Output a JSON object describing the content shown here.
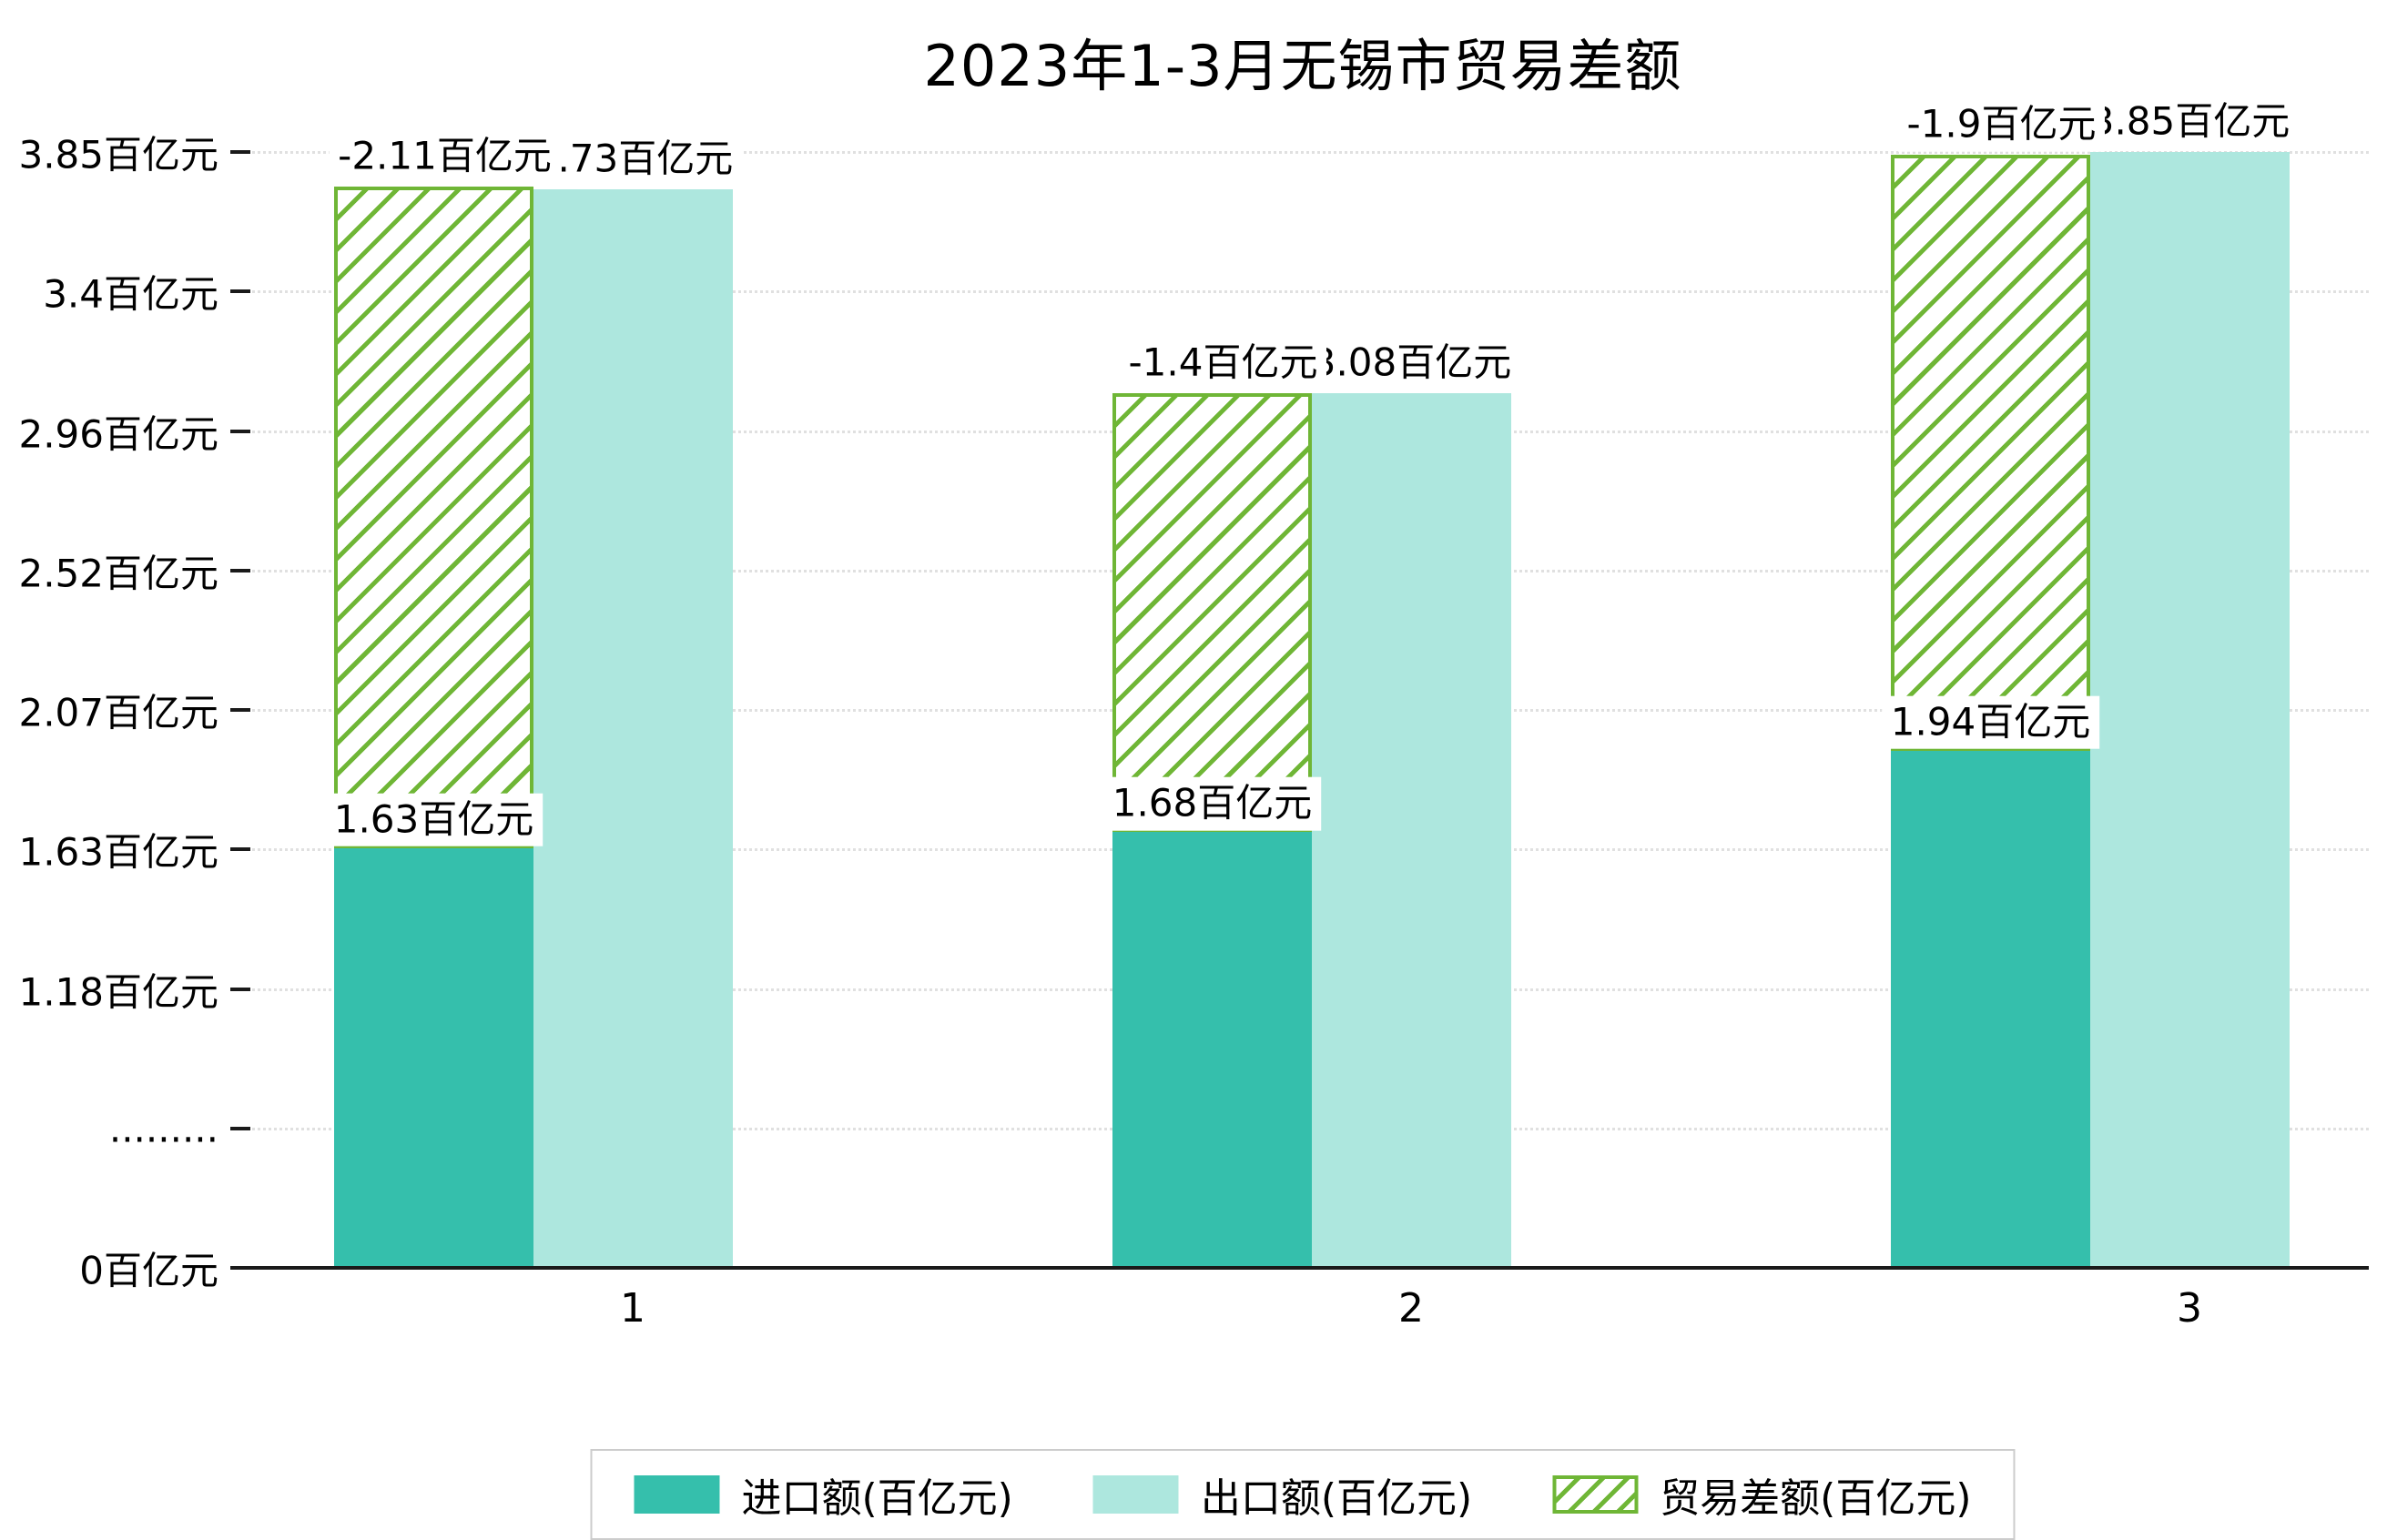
{
  "chart_data": {
    "type": "bar",
    "title": "2023年1-3月无锡市贸易差额",
    "categories": [
      "1",
      "2",
      "3"
    ],
    "unit": "百亿元",
    "series": [
      {
        "name": "进口额(百亿元)",
        "values": [
          1.63,
          1.68,
          1.94
        ],
        "value_labels": [
          "1.63百亿元",
          "1.68百亿元",
          "1.94百亿元"
        ],
        "color": "#35bfac",
        "style": "solid"
      },
      {
        "name": "出口额(百亿元)",
        "values": [
          3.73,
          3.08,
          3.85
        ],
        "value_labels": [
          "3.73百亿元",
          "3.08百亿元",
          "3.85百亿元"
        ],
        "color": "#ade7de",
        "style": "solid"
      },
      {
        "name": "贸易差额(百亿元)",
        "values": [
          -2.11,
          -1.4,
          -1.9
        ],
        "value_labels": [
          "-2.11百亿元",
          "-1.4百亿元",
          "-1.9百亿元"
        ],
        "color": "#6fb636",
        "style": "hatched",
        "render_note": "hatched bar drawn over import column, spanning from import top up by |balance|"
      }
    ],
    "y_axis": {
      "ticks": [
        "0百亿元",
        ".........",
        "1.18百亿元",
        "1.63百亿元",
        "2.07百亿元",
        "2.52百亿元",
        "2.96百亿元",
        "3.4百亿元",
        "3.85百亿元"
      ],
      "broken_axis": true
    },
    "x_axis": {
      "ticks": [
        "1",
        "2",
        "3"
      ]
    },
    "grid": "dotted-horizontal",
    "legend_position": "bottom-center"
  }
}
